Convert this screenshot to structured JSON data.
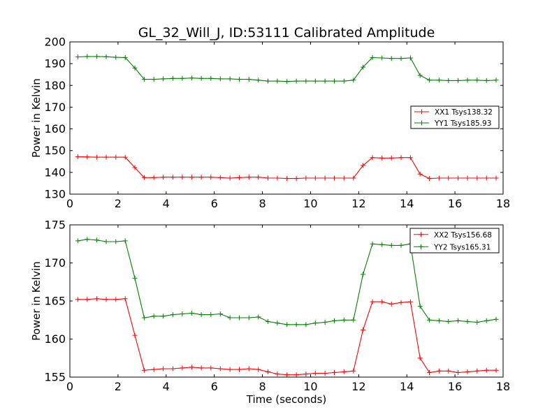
{
  "figure": {
    "title": "GL_32_Will_J, ID:53111 Calibrated Amplitude",
    "xlabel": "Time (seconds)"
  },
  "colors": {
    "red": "#ff0000",
    "green": "#008000"
  },
  "chart_data": [
    {
      "type": "line",
      "title": "GL_32_Will_J, ID:53111 Calibrated Amplitude",
      "xlabel": "",
      "ylabel": "Power in Kelvin",
      "xlim": [
        0,
        18
      ],
      "ylim": [
        130,
        200
      ],
      "xticks": [
        0,
        2,
        4,
        6,
        8,
        10,
        12,
        14,
        16,
        18
      ],
      "yticks": [
        130,
        140,
        150,
        160,
        170,
        180,
        190,
        200
      ],
      "grid": false,
      "legend": "center-right",
      "x": [
        0.33,
        0.72,
        1.12,
        1.51,
        1.91,
        2.3,
        2.7,
        3.09,
        3.49,
        3.88,
        4.28,
        4.67,
        5.07,
        5.46,
        5.86,
        6.25,
        6.65,
        7.04,
        7.44,
        7.83,
        8.23,
        8.62,
        9.02,
        9.41,
        9.81,
        10.2,
        10.6,
        10.99,
        11.39,
        11.78,
        12.18,
        12.57,
        12.97,
        13.36,
        13.76,
        14.15,
        14.55,
        14.94,
        15.34,
        15.73,
        16.13,
        16.52,
        16.92,
        17.31,
        17.71
      ],
      "series": [
        {
          "name": "XX1 Tsys138.32",
          "color": "#ff0000",
          "values": [
            147.2,
            147.1,
            147.0,
            147.0,
            147.0,
            147.0,
            142.2,
            137.6,
            137.6,
            137.8,
            137.8,
            137.8,
            137.8,
            137.8,
            137.8,
            137.6,
            137.4,
            137.6,
            137.8,
            137.8,
            137.4,
            137.4,
            137.2,
            137.2,
            137.4,
            137.4,
            137.4,
            137.4,
            137.4,
            137.4,
            143.2,
            146.8,
            146.6,
            146.6,
            146.8,
            146.8,
            139.2,
            137.2,
            137.4,
            137.4,
            137.4,
            137.4,
            137.4,
            137.4,
            137.4
          ]
        },
        {
          "name": "YY1 Tsys185.93",
          "color": "#008000",
          "values": [
            193.1,
            193.3,
            193.3,
            193.2,
            192.9,
            192.8,
            188.0,
            182.8,
            182.8,
            183.0,
            183.2,
            183.2,
            183.4,
            183.2,
            183.2,
            183.0,
            183.0,
            182.8,
            182.8,
            182.4,
            182.0,
            182.0,
            181.8,
            182.0,
            182.0,
            182.0,
            182.0,
            182.0,
            182.0,
            182.4,
            188.4,
            192.8,
            192.6,
            192.4,
            192.4,
            192.6,
            184.6,
            182.4,
            182.4,
            182.2,
            182.2,
            182.4,
            182.4,
            182.2,
            182.4
          ]
        }
      ]
    },
    {
      "type": "line",
      "title": "",
      "xlabel": "Time (seconds)",
      "ylabel": "Power in Kelvin",
      "xlim": [
        0,
        18
      ],
      "ylim": [
        155,
        175
      ],
      "xticks": [
        0,
        2,
        4,
        6,
        8,
        10,
        12,
        14,
        16,
        18
      ],
      "yticks": [
        155,
        160,
        165,
        170,
        175
      ],
      "grid": false,
      "legend": "top-right",
      "x": [
        0.33,
        0.72,
        1.12,
        1.51,
        1.91,
        2.3,
        2.7,
        3.09,
        3.49,
        3.88,
        4.28,
        4.67,
        5.07,
        5.46,
        5.86,
        6.25,
        6.65,
        7.04,
        7.44,
        7.83,
        8.23,
        8.62,
        9.02,
        9.41,
        9.81,
        10.2,
        10.6,
        10.99,
        11.39,
        11.78,
        12.18,
        12.57,
        12.97,
        13.36,
        13.76,
        14.15,
        14.55,
        14.94,
        15.34,
        15.73,
        16.13,
        16.52,
        16.92,
        17.31,
        17.71
      ],
      "series": [
        {
          "name": "XX2 Tsys156.68",
          "color": "#ff0000",
          "values": [
            165.2,
            165.2,
            165.3,
            165.2,
            165.2,
            165.3,
            160.5,
            155.9,
            156.0,
            156.1,
            156.1,
            156.2,
            156.3,
            156.2,
            156.2,
            156.1,
            156.0,
            156.0,
            156.1,
            156.0,
            155.7,
            155.4,
            155.3,
            155.3,
            155.4,
            155.5,
            155.5,
            155.6,
            155.7,
            155.8,
            161.2,
            164.9,
            164.9,
            164.6,
            164.8,
            164.9,
            157.5,
            155.6,
            155.8,
            155.8,
            155.6,
            155.7,
            155.8,
            155.9,
            155.9
          ]
        },
        {
          "name": "YY2 Tsys165.31",
          "color": "#008000",
          "values": [
            172.9,
            173.1,
            173.0,
            172.8,
            172.8,
            172.9,
            168.0,
            162.8,
            163.0,
            163.0,
            163.2,
            163.3,
            163.4,
            163.2,
            163.2,
            163.3,
            162.8,
            162.8,
            162.8,
            162.9,
            162.3,
            162.1,
            161.9,
            161.9,
            161.9,
            162.1,
            162.2,
            162.4,
            162.5,
            162.5,
            168.5,
            172.5,
            172.4,
            172.3,
            172.3,
            172.5,
            164.3,
            162.5,
            162.4,
            162.3,
            162.4,
            162.3,
            162.2,
            162.4,
            162.6
          ]
        }
      ]
    }
  ]
}
